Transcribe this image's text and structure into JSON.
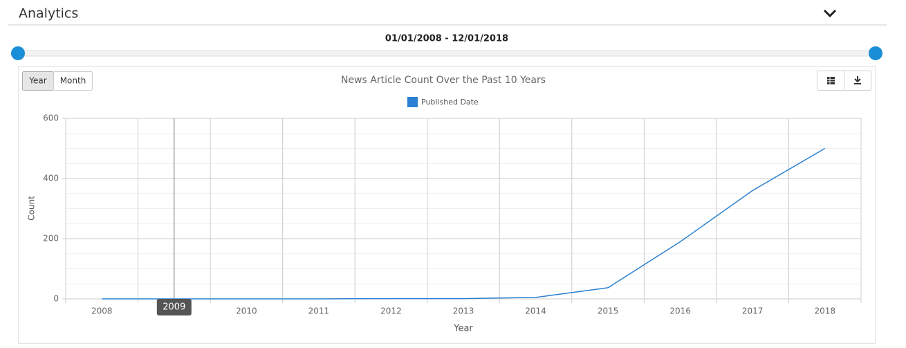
{
  "header": {
    "title": "Analytics"
  },
  "date_range": "01/01/2008 - 12/01/2018",
  "buttons": [
    "Year",
    "Month"
  ],
  "chart_data": {
    "type": "line",
    "title": "News Article Count Over the Past 10 Years",
    "x_label": "Year",
    "y_label": "Count",
    "categories": [
      "2008",
      "2009",
      "2010",
      "2011",
      "2012",
      "2013",
      "2014",
      "2015",
      "2016",
      "2017",
      "2018"
    ],
    "series": [
      {
        "name": "Published Date",
        "color": "#2a80d2",
        "values": [
          0,
          0,
          0,
          0,
          1,
          1,
          5,
          37,
          190,
          360,
          500
        ]
      }
    ],
    "ylim": [
      0,
      600
    ],
    "yticks": [
      0,
      200,
      400,
      600
    ],
    "grid": true,
    "tooltip": "2009"
  }
}
